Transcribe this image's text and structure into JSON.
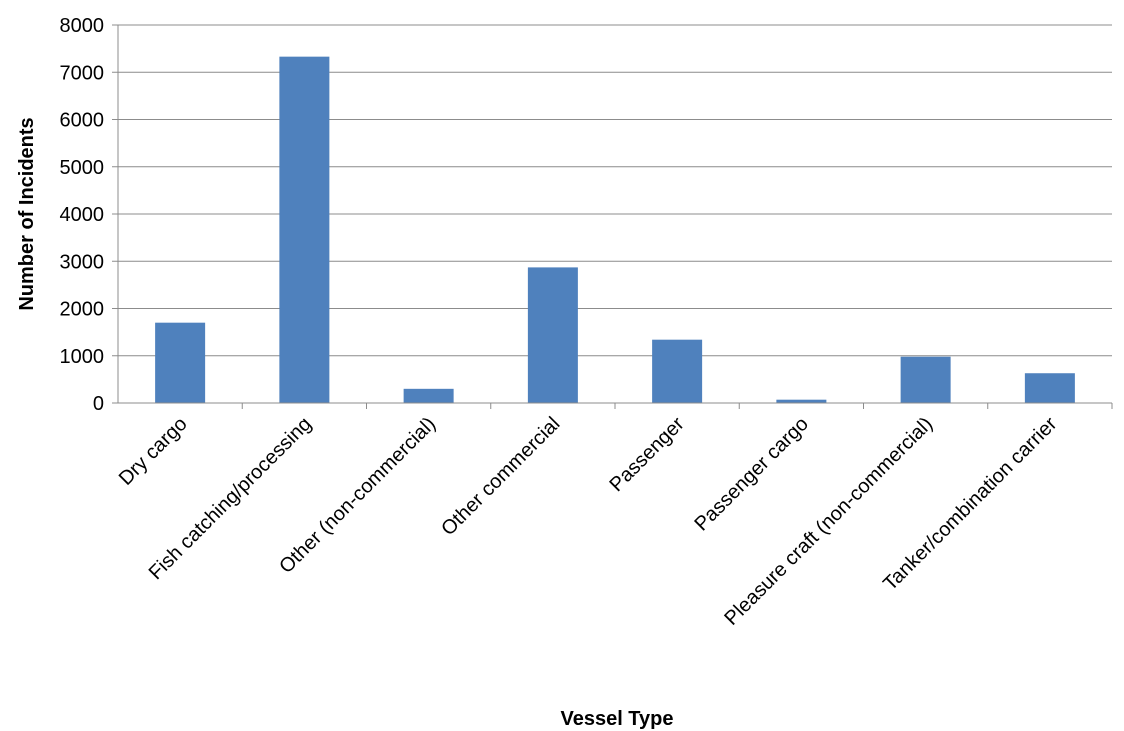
{
  "chart_data": {
    "type": "bar",
    "title": "",
    "xlabel": "Vessel Type",
    "ylabel": "Number  of Incidents",
    "ylim": [
      0,
      8000
    ],
    "yticks": [
      0,
      1000,
      2000,
      3000,
      4000,
      5000,
      6000,
      7000,
      8000
    ],
    "grid": true,
    "legend": "none",
    "bar_color": "#4F81BD",
    "categories": [
      "Dry cargo",
      "Fish catching/processing",
      "Other (non-commercial)",
      "Other commercial",
      "Passenger",
      "Passenger cargo",
      "Pleasure craft (non-commercial)",
      "Tanker/combination carrier"
    ],
    "values": [
      1700,
      7330,
      300,
      2870,
      1340,
      70,
      980,
      630
    ]
  }
}
